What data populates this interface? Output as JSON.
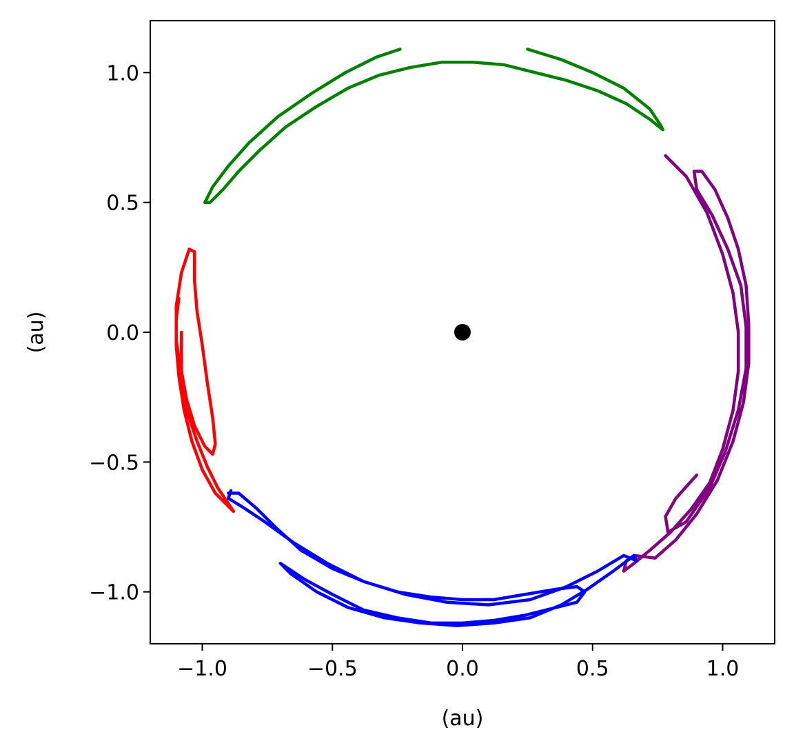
{
  "chart_data": {
    "type": "scatter",
    "title": "",
    "xlabel": "(au)",
    "ylabel": "(au)",
    "xlim": [
      -1.2,
      1.2
    ],
    "ylim": [
      -1.2,
      1.2
    ],
    "x_ticks": [
      -1.0,
      -0.5,
      0.0,
      0.5,
      1.0
    ],
    "y_ticks": [
      -1.0,
      -0.5,
      0.0,
      0.5,
      1.0
    ],
    "x_tick_labels": [
      "−1.0",
      "−0.5",
      "0.0",
      "0.5",
      "1.0"
    ],
    "y_tick_labels": [
      "−1.0",
      "−0.5",
      "0.0",
      "0.5",
      "1.0"
    ],
    "grid": false,
    "legend": "none",
    "central_body": {
      "x": 0.0,
      "y": 0.0,
      "color": "#000000"
    },
    "series": [
      {
        "color": "#008000",
        "points": [
          [
            -0.24,
            1.09
          ],
          [
            -0.33,
            1.06
          ],
          [
            -0.45,
            1.0
          ],
          [
            -0.58,
            0.92
          ],
          [
            -0.71,
            0.83
          ],
          [
            -0.82,
            0.73
          ],
          [
            -0.9,
            0.64
          ],
          [
            -0.96,
            0.56
          ],
          [
            -0.99,
            0.5
          ],
          [
            -0.97,
            0.5
          ],
          [
            -0.92,
            0.55
          ],
          [
            -0.86,
            0.62
          ],
          [
            -0.78,
            0.7
          ],
          [
            -0.68,
            0.79
          ],
          [
            -0.56,
            0.87
          ],
          [
            -0.44,
            0.94
          ],
          [
            -0.32,
            0.99
          ],
          [
            -0.2,
            1.02
          ],
          [
            -0.08,
            1.04
          ],
          [
            0.04,
            1.04
          ],
          [
            0.16,
            1.03
          ],
          [
            0.28,
            1.0
          ],
          [
            0.4,
            0.97
          ],
          [
            0.52,
            0.93
          ],
          [
            0.63,
            0.88
          ],
          [
            0.72,
            0.82
          ],
          [
            0.77,
            0.78
          ],
          [
            0.76,
            0.8
          ],
          [
            0.72,
            0.86
          ],
          [
            0.62,
            0.94
          ],
          [
            0.5,
            1.0
          ],
          [
            0.38,
            1.05
          ],
          [
            0.25,
            1.09
          ]
        ]
      },
      {
        "color": "#800080",
        "points": [
          [
            0.78,
            0.68
          ],
          [
            0.86,
            0.6
          ],
          [
            0.94,
            0.46
          ],
          [
            1.0,
            0.3
          ],
          [
            1.04,
            0.15
          ],
          [
            1.06,
            0.0
          ],
          [
            1.06,
            -0.15
          ],
          [
            1.04,
            -0.3
          ],
          [
            1.0,
            -0.45
          ],
          [
            0.95,
            -0.58
          ],
          [
            0.88,
            -0.68
          ],
          [
            0.8,
            -0.77
          ],
          [
            0.72,
            -0.84
          ],
          [
            0.66,
            -0.89
          ],
          [
            0.62,
            -0.92
          ],
          [
            0.63,
            -0.88
          ],
          [
            0.66,
            -0.86
          ],
          [
            0.74,
            -0.87
          ],
          [
            0.82,
            -0.8
          ],
          [
            0.9,
            -0.7
          ],
          [
            0.98,
            -0.57
          ],
          [
            1.04,
            -0.42
          ],
          [
            1.08,
            -0.27
          ],
          [
            1.1,
            -0.12
          ],
          [
            1.1,
            0.03
          ],
          [
            1.09,
            0.18
          ],
          [
            1.06,
            0.32
          ],
          [
            1.02,
            0.44
          ],
          [
            0.97,
            0.55
          ],
          [
            0.92,
            0.62
          ],
          [
            0.89,
            0.62
          ],
          [
            0.9,
            0.55
          ],
          [
            0.96,
            0.45
          ],
          [
            1.02,
            0.32
          ],
          [
            1.07,
            0.18
          ],
          [
            1.09,
            0.02
          ],
          [
            1.09,
            -0.14
          ],
          [
            1.06,
            -0.3
          ],
          [
            1.01,
            -0.46
          ],
          [
            0.95,
            -0.6
          ],
          [
            0.86,
            -0.73
          ],
          [
            0.79,
            -0.77
          ],
          [
            0.78,
            -0.71
          ],
          [
            0.82,
            -0.64
          ],
          [
            0.9,
            -0.55
          ]
        ]
      },
      {
        "color": "#ff0000",
        "points": [
          [
            -1.09,
            0.13
          ],
          [
            -1.1,
            0.05
          ],
          [
            -1.1,
            -0.05
          ],
          [
            -1.09,
            -0.17
          ],
          [
            -1.07,
            -0.3
          ],
          [
            -1.04,
            -0.42
          ],
          [
            -1.0,
            -0.53
          ],
          [
            -0.95,
            -0.62
          ],
          [
            -0.9,
            -0.67
          ],
          [
            -0.88,
            -0.69
          ],
          [
            -0.9,
            -0.66
          ],
          [
            -0.94,
            -0.6
          ],
          [
            -0.98,
            -0.52
          ],
          [
            -1.02,
            -0.42
          ],
          [
            -1.06,
            -0.3
          ],
          [
            -1.08,
            -0.17
          ],
          [
            -1.1,
            -0.03
          ],
          [
            -1.1,
            0.1
          ],
          [
            -1.08,
            0.23
          ],
          [
            -1.05,
            0.32
          ],
          [
            -1.03,
            0.31
          ],
          [
            -1.03,
            0.2
          ],
          [
            -1.02,
            0.08
          ],
          [
            -1.0,
            -0.05
          ],
          [
            -0.98,
            -0.2
          ],
          [
            -0.96,
            -0.33
          ],
          [
            -0.95,
            -0.43
          ],
          [
            -0.96,
            -0.47
          ],
          [
            -0.99,
            -0.44
          ],
          [
            -1.03,
            -0.36
          ],
          [
            -1.06,
            -0.26
          ],
          [
            -1.08,
            -0.15
          ],
          [
            -1.08,
            0.0
          ]
        ]
      },
      {
        "color": "#0000ff",
        "points": [
          [
            -0.9,
            -0.62
          ],
          [
            -0.86,
            -0.62
          ],
          [
            -0.79,
            -0.68
          ],
          [
            -0.72,
            -0.75
          ],
          [
            -0.62,
            -0.84
          ],
          [
            -0.5,
            -0.91
          ],
          [
            -0.38,
            -0.96
          ],
          [
            -0.25,
            -1.0
          ],
          [
            -0.12,
            -1.02
          ],
          [
            0.0,
            -1.03
          ],
          [
            0.12,
            -1.03
          ],
          [
            0.24,
            -1.01
          ],
          [
            0.36,
            -0.99
          ],
          [
            0.44,
            -0.98
          ],
          [
            0.47,
            -1.0
          ],
          [
            0.44,
            -1.04
          ],
          [
            0.36,
            -1.06
          ],
          [
            0.24,
            -1.09
          ],
          [
            0.12,
            -1.11
          ],
          [
            0.0,
            -1.12
          ],
          [
            -0.12,
            -1.12
          ],
          [
            -0.25,
            -1.1
          ],
          [
            -0.38,
            -1.07
          ],
          [
            -0.5,
            -1.01
          ],
          [
            -0.61,
            -0.95
          ],
          [
            -0.7,
            -0.89
          ],
          [
            -0.66,
            -0.93
          ],
          [
            -0.56,
            -1.0
          ],
          [
            -0.44,
            -1.06
          ],
          [
            -0.3,
            -1.1
          ],
          [
            -0.16,
            -1.12
          ],
          [
            -0.02,
            -1.13
          ],
          [
            0.12,
            -1.12
          ],
          [
            0.26,
            -1.1
          ],
          [
            0.38,
            -1.05
          ],
          [
            0.48,
            -0.99
          ],
          [
            0.58,
            -0.92
          ],
          [
            0.66,
            -0.86
          ],
          [
            0.67,
            -0.88
          ],
          [
            0.62,
            -0.86
          ],
          [
            0.52,
            -0.92
          ],
          [
            0.4,
            -0.98
          ],
          [
            0.26,
            -1.03
          ],
          [
            0.1,
            -1.05
          ],
          [
            -0.06,
            -1.04
          ],
          [
            -0.22,
            -1.01
          ],
          [
            -0.38,
            -0.96
          ],
          [
            -0.52,
            -0.89
          ],
          [
            -0.65,
            -0.81
          ],
          [
            -0.76,
            -0.73
          ],
          [
            -0.85,
            -0.67
          ],
          [
            -0.9,
            -0.64
          ],
          [
            -0.89,
            -0.61
          ]
        ]
      }
    ]
  }
}
